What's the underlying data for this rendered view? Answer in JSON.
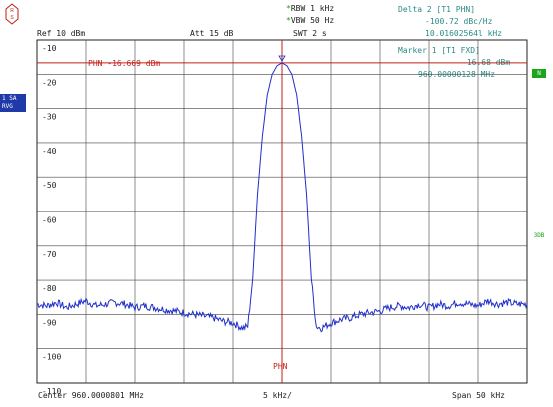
{
  "header": {
    "rbw": "RBW 1 kHz",
    "vbw": "VBW 50 Hz",
    "swt": "SWT 2 s",
    "ref": "Ref  10 dBm",
    "att": "Att  15 dB"
  },
  "delta_marker": {
    "title": "Delta 2 [T1 PHN]",
    "value": "-100.72 dBc/Hz",
    "freq": "10.01602564l kHz"
  },
  "marker1": {
    "title": "Marker 1 [T1 FXD]",
    "level": "-16.68 dBm",
    "freq": "960.00000128 MHz"
  },
  "ref_line_label": "PHN -16.669 dBm",
  "side_badge": [
    "1 SA",
    "RVG"
  ],
  "right_tags": [
    "N",
    "3DB"
  ],
  "footer": {
    "center": "Center  960.0000801 MHz",
    "span_div": "5 kHz/",
    "span": "Span  50 kHz"
  },
  "bottom_marker_label": "PHN",
  "colors": {
    "trace": "#2030c8",
    "marker_line": "#c0201a",
    "grid": "#3a3a3a",
    "text_teal": "#2a8a86"
  },
  "chart_data": {
    "type": "line",
    "title": "",
    "xlabel": "",
    "ylabel": "",
    "ylim": [
      -110,
      -10
    ],
    "xlim": [
      -25,
      25
    ],
    "y_ticks": [
      "-10",
      "-20",
      "-30",
      "-40",
      "-50",
      "-60",
      "-70",
      "-80",
      "-90",
      "-100",
      "-110"
    ],
    "series": [
      {
        "x": [
          -25,
          -24,
          -23,
          -22,
          -21,
          -20,
          -19,
          -18,
          -17,
          -16,
          -15,
          -14,
          -13,
          -12,
          -11,
          -10,
          -9,
          -8,
          -7,
          -6,
          -5,
          -4,
          -3.5,
          -3,
          -2.5,
          -2,
          -1.5,
          -1,
          -0.5,
          0,
          0.5,
          1,
          1.5,
          2,
          2.5,
          3,
          3.5,
          4,
          5,
          6,
          7,
          8,
          9,
          10,
          11,
          12,
          13,
          14,
          15,
          16,
          17,
          18,
          19,
          20,
          21,
          22,
          23,
          24,
          25
        ],
        "y": [
          -87,
          -87.5,
          -86.5,
          -88,
          -87,
          -86,
          -87.5,
          -87,
          -86.5,
          -87,
          -88,
          -87.5,
          -88,
          -88.5,
          -89,
          -89.5,
          -90,
          -90.5,
          -91,
          -92,
          -92.5,
          -94,
          -93.5,
          -80,
          -55,
          -38,
          -26,
          -20,
          -17.5,
          -16.7,
          -17.5,
          -20,
          -26,
          -38,
          -55,
          -80,
          -93.5,
          -94,
          -92.5,
          -91.5,
          -91,
          -90,
          -89.5,
          -89,
          -88,
          -87.5,
          -88,
          -87,
          -88,
          -87,
          -87.5,
          -86.5,
          -87,
          -87.5,
          -86,
          -87,
          -86.5,
          -87,
          -87
        ]
      }
    ],
    "marker_x": 0,
    "reference_level": -16.669
  }
}
